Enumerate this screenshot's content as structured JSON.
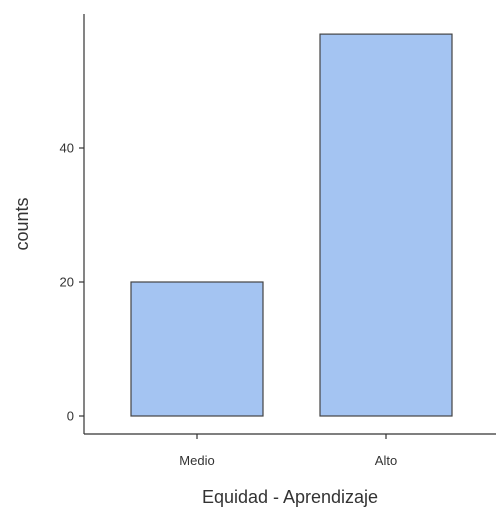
{
  "chart_data": {
    "type": "bar",
    "categories": [
      "Medio",
      "Alto"
    ],
    "values": [
      20,
      57
    ],
    "xlabel": "Equidad - Aprendizaje",
    "ylabel": "counts",
    "yticks": [
      0,
      20,
      40
    ],
    "ylim": [
      0,
      59
    ],
    "grid": false,
    "bar_color": "#a4c4f2",
    "bar_stroke": "#444444"
  }
}
